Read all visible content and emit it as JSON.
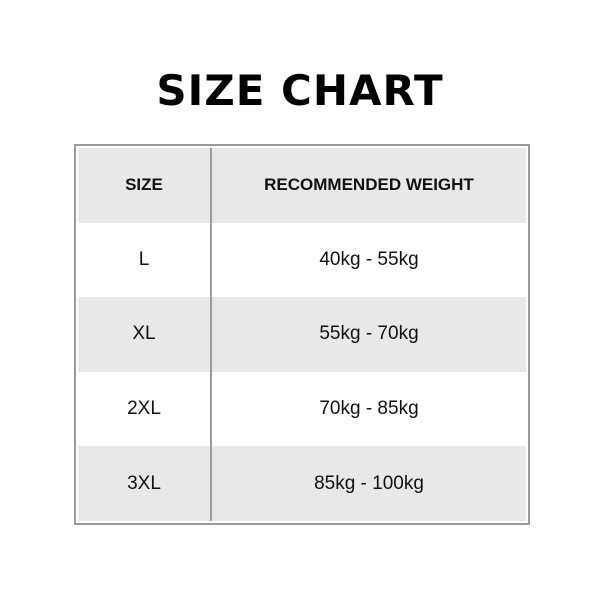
{
  "title": "SIZE CHART",
  "table": {
    "headers": [
      "SIZE",
      "RECOMMENDED WEIGHT"
    ],
    "rows": [
      [
        "L",
        "40kg - 55kg"
      ],
      [
        "XL",
        "55kg - 70kg"
      ],
      [
        "2XL",
        "70kg - 85kg"
      ],
      [
        "3XL",
        "85kg - 100kg"
      ]
    ]
  },
  "colors": {
    "border": "#9a9a9a",
    "stripe": "#e8e8e8"
  }
}
